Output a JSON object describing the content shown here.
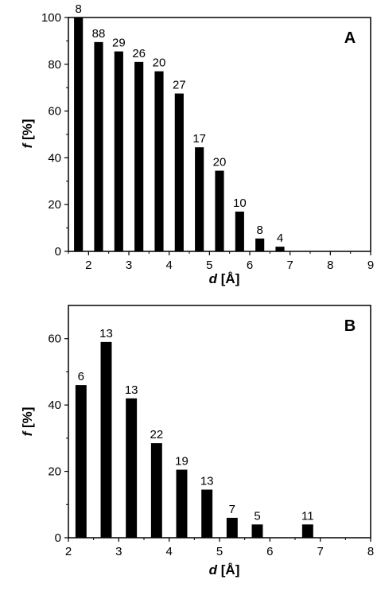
{
  "chart_data": [
    {
      "type": "bar",
      "panel_label": "A",
      "xlabel_main": "d",
      "xlabel_unit": " [Å]",
      "ylabel_main": "f",
      "ylabel_unit": " [%]",
      "xlim": [
        1.5,
        9
      ],
      "ylim": [
        0,
        100
      ],
      "xticks": [
        2,
        3,
        4,
        5,
        6,
        7,
        8,
        9
      ],
      "yticks": [
        0,
        20,
        40,
        60,
        80,
        100
      ],
      "bar_width": 0.22,
      "x": [
        1.75,
        2.25,
        2.75,
        3.25,
        3.75,
        4.25,
        4.75,
        5.25,
        5.75,
        6.25,
        6.75
      ],
      "values": [
        100,
        89.5,
        85.5,
        81,
        77,
        67.5,
        44.5,
        34.5,
        17,
        5.5,
        2
      ],
      "bar_labels": [
        "8",
        "88",
        "29",
        "26",
        "20",
        "27",
        "17",
        "20",
        "10",
        "8",
        "4"
      ]
    },
    {
      "type": "bar",
      "panel_label": "B",
      "xlabel_main": "d",
      "xlabel_unit": " [Å]",
      "ylabel_main": "f",
      "ylabel_unit": " [%]",
      "xlim": [
        2,
        8
      ],
      "ylim": [
        0,
        70
      ],
      "xticks": [
        2,
        3,
        4,
        5,
        6,
        7,
        8
      ],
      "yticks": [
        0,
        20,
        40,
        60
      ],
      "bar_width": 0.22,
      "x": [
        2.25,
        2.75,
        3.25,
        3.75,
        4.25,
        4.75,
        5.25,
        5.75,
        6.25,
        6.75
      ],
      "values": [
        46,
        59,
        42,
        28.5,
        20.5,
        14.5,
        6,
        4,
        0,
        4
      ],
      "bar_labels": [
        "6",
        "13",
        "13",
        "22",
        "19",
        "13",
        "7",
        "5",
        "",
        "11"
      ]
    }
  ]
}
